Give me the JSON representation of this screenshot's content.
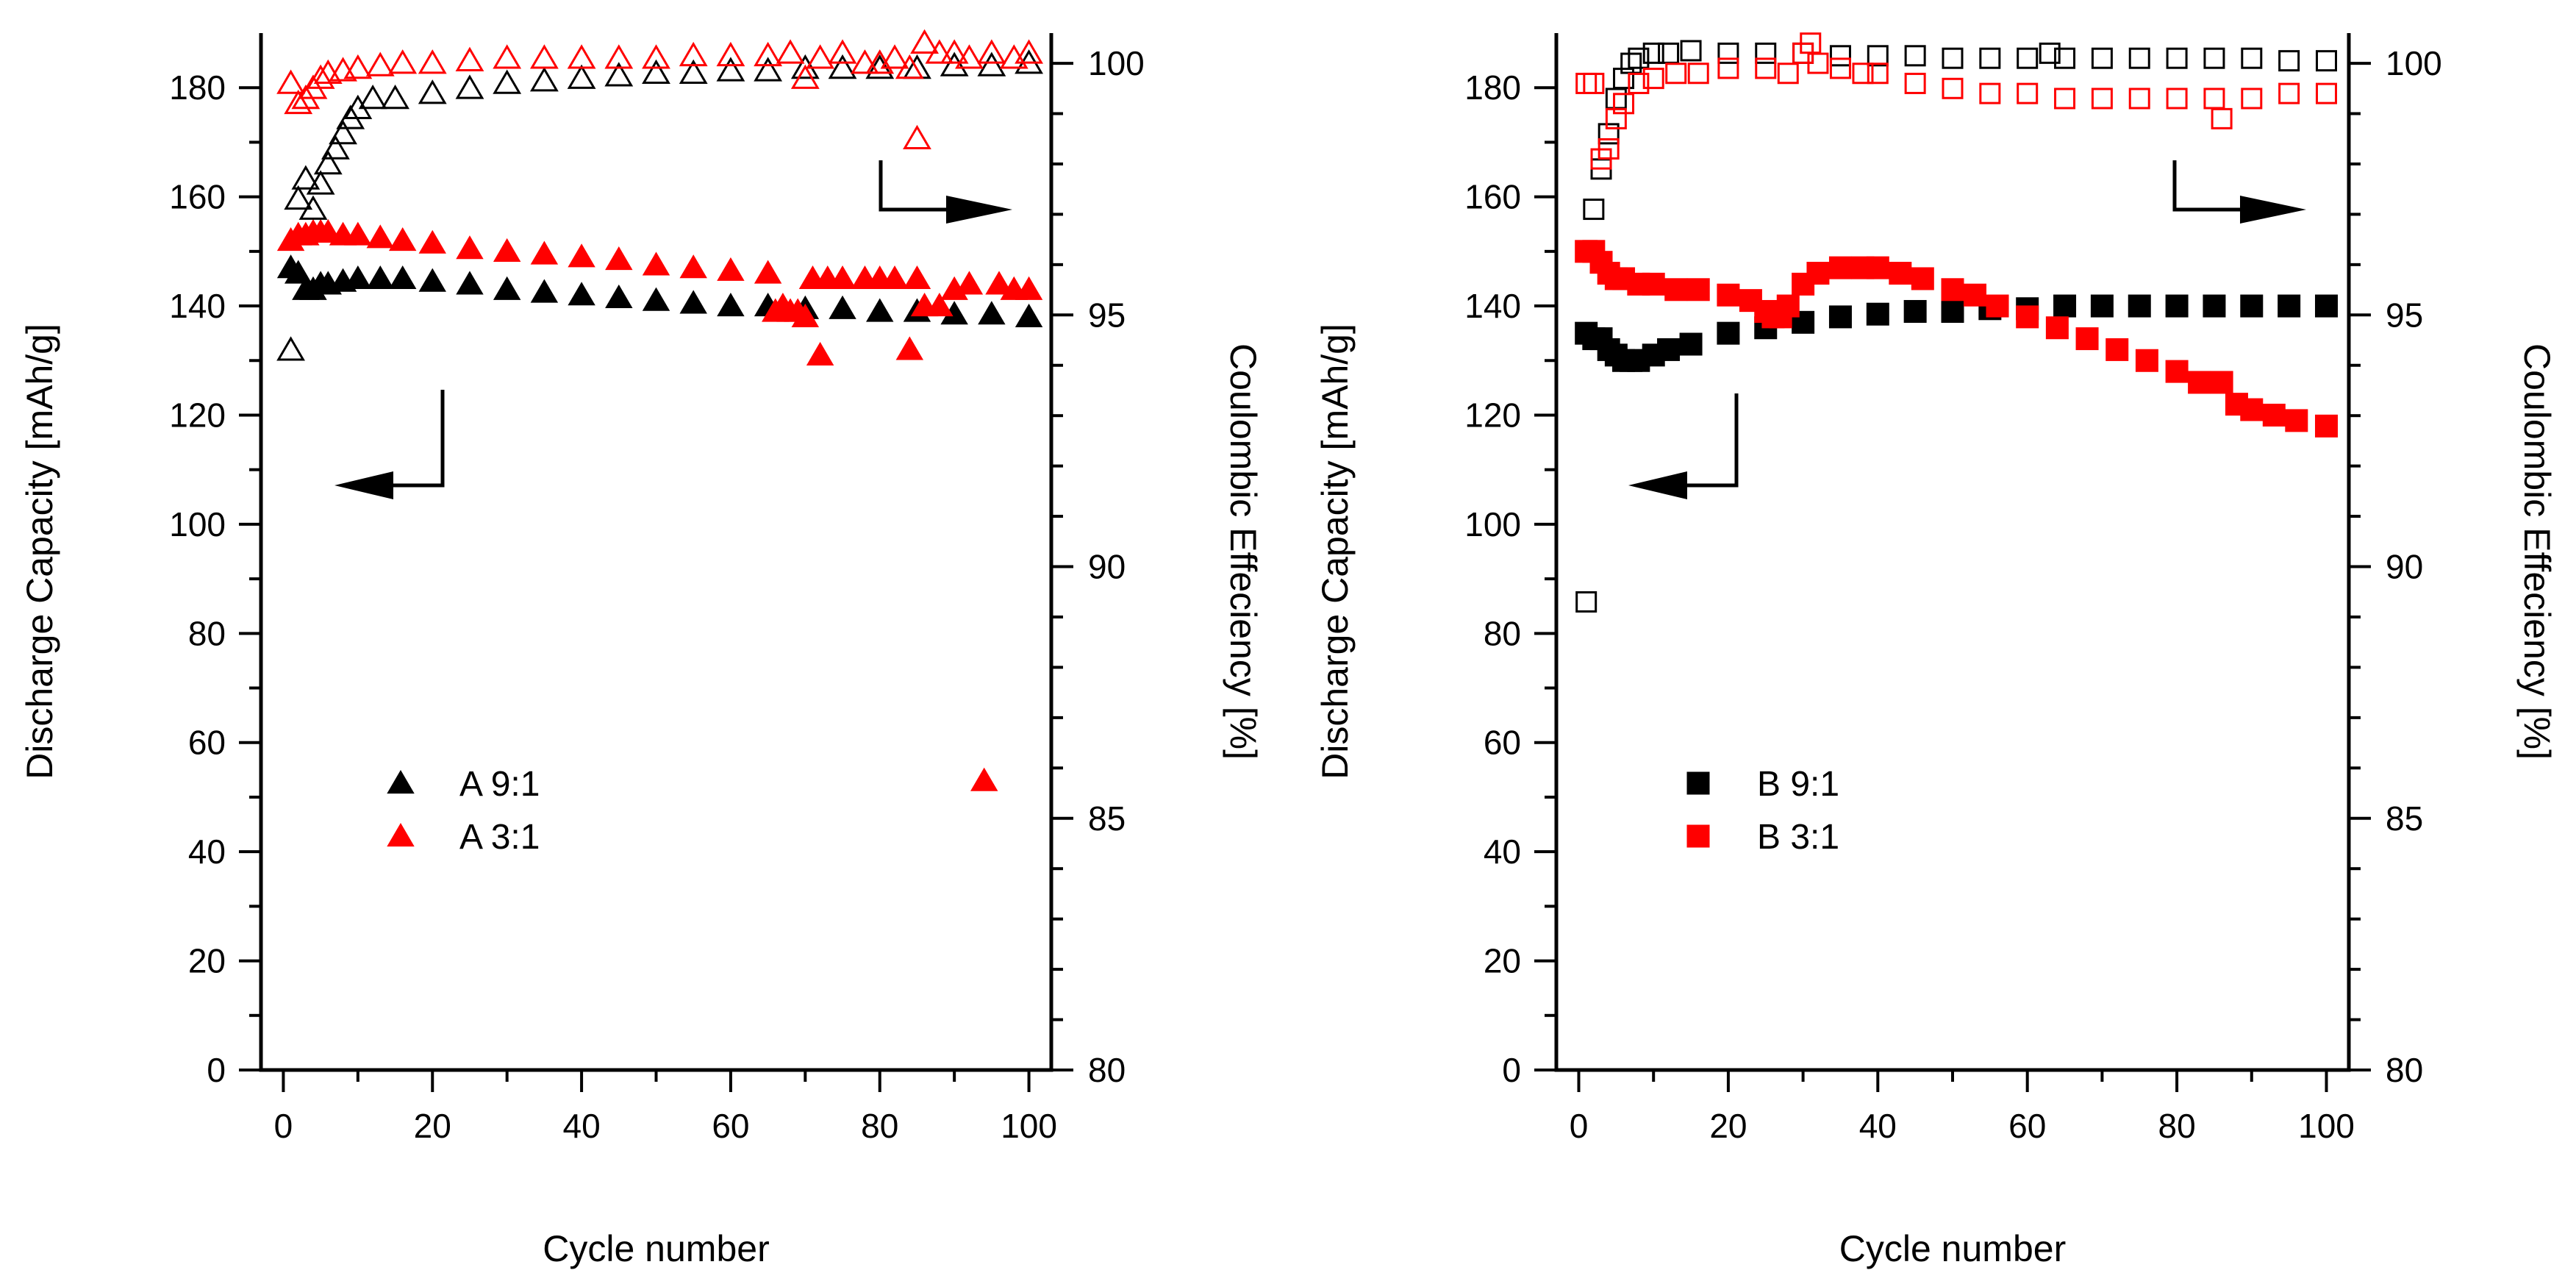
{
  "chart_data": [
    {
      "type": "scatter",
      "panel": "left",
      "xlabel": "Cycle number",
      "ylabel_left": "Discharge Capacity [mAh/g]",
      "ylabel_right": "Coulombic Effeciency [%]",
      "xlim": [
        -3,
        103
      ],
      "ylim_left": [
        0,
        190
      ],
      "ylim_right": [
        80,
        100.6
      ],
      "x_ticks": [
        0,
        20,
        40,
        60,
        80,
        100
      ],
      "y_ticks_left": [
        0,
        20,
        40,
        60,
        80,
        100,
        120,
        140,
        160,
        180
      ],
      "y_ticks_right": [
        80,
        85,
        90,
        95,
        100
      ],
      "legend": [
        {
          "label": "A 9:1",
          "color": "#000000",
          "marker": "triangle-filled"
        },
        {
          "label": "A 3:1",
          "color": "#ff0000",
          "marker": "triangle-filled"
        }
      ],
      "annotations": [
        {
          "type": "arrow",
          "points_to": "left axis",
          "near": [
            22,
            120
          ]
        },
        {
          "type": "arrow",
          "points_to": "right axis",
          "near": [
            80,
            168
          ]
        }
      ],
      "series": [
        {
          "name": "A 9:1 discharge capacity",
          "axis": "left",
          "color": "#000000",
          "marker": "triangle-filled",
          "x": [
            1,
            2,
            3,
            4,
            5,
            6,
            8,
            10,
            13,
            16,
            20,
            25,
            30,
            35,
            40,
            45,
            50,
            55,
            60,
            65,
            70,
            75,
            80,
            85,
            90,
            95,
            100
          ],
          "y": [
            147,
            146,
            143,
            143,
            144,
            144,
            144.5,
            145,
            145,
            145,
            144.5,
            144,
            143,
            142.5,
            142,
            141.5,
            141,
            140.5,
            140,
            140,
            139.5,
            139.5,
            139,
            139,
            138.5,
            138.5,
            138
          ]
        },
        {
          "name": "A 3:1 discharge capacity",
          "axis": "left",
          "color": "#ff0000",
          "marker": "triangle-filled",
          "x": [
            1,
            2,
            3,
            4,
            5,
            6,
            8,
            10,
            13,
            16,
            20,
            25,
            30,
            35,
            40,
            45,
            50,
            55,
            60,
            65,
            66,
            67,
            68,
            69,
            70,
            71,
            72,
            73,
            75,
            78,
            80,
            82,
            84,
            85,
            86,
            88,
            90,
            92,
            94,
            96,
            98,
            100
          ],
          "y": [
            152,
            153,
            153,
            153.5,
            153.5,
            153.5,
            153,
            153,
            152.5,
            152,
            151.5,
            150.5,
            150,
            149.5,
            149,
            148.5,
            147.5,
            147,
            146.5,
            146,
            139,
            140,
            139,
            139,
            138,
            145,
            131,
            145,
            145,
            145,
            145,
            145,
            132,
            145,
            140,
            140,
            143,
            144,
            53,
            144,
            143,
            143
          ]
        },
        {
          "name": "A 9:1 coulombic efficiency",
          "axis": "right",
          "color": "#000000",
          "marker": "triangle-open",
          "x": [
            1,
            2,
            3,
            4,
            5,
            6,
            7,
            8,
            9,
            10,
            12,
            15,
            20,
            25,
            30,
            35,
            40,
            45,
            50,
            55,
            60,
            65,
            70,
            75,
            80,
            85,
            90,
            95,
            100
          ],
          "y": [
            94.3,
            97.3,
            97.7,
            97.1,
            97.6,
            98.0,
            98.3,
            98.6,
            98.9,
            99.1,
            99.3,
            99.3,
            99.4,
            99.5,
            99.6,
            99.65,
            99.7,
            99.75,
            99.8,
            99.8,
            99.85,
            99.85,
            99.9,
            99.9,
            99.9,
            99.9,
            99.95,
            99.95,
            100.0
          ]
        },
        {
          "name": "A 3:1 coulombic efficiency",
          "axis": "right",
          "color": "#ff0000",
          "marker": "triangle-open",
          "x": [
            1,
            2,
            3,
            4,
            5,
            6,
            8,
            10,
            13,
            16,
            20,
            25,
            30,
            35,
            40,
            45,
            50,
            55,
            60,
            65,
            68,
            70,
            72,
            75,
            78,
            80,
            82,
            84,
            85,
            86,
            88,
            90,
            92,
            95,
            98,
            100
          ],
          "y": [
            99.6,
            99.2,
            99.3,
            99.5,
            99.7,
            99.8,
            99.85,
            99.9,
            99.95,
            100.0,
            100.0,
            100.05,
            100.1,
            100.1,
            100.1,
            100.1,
            100.1,
            100.15,
            100.15,
            100.15,
            100.2,
            99.7,
            100.1,
            100.2,
            100.0,
            100.0,
            100.1,
            99.9,
            98.5,
            100.4,
            100.2,
            100.2,
            100.1,
            100.2,
            100.1,
            100.2
          ]
        }
      ]
    },
    {
      "type": "scatter",
      "panel": "right",
      "xlabel": "Cycle number",
      "ylabel_left": "Discharge Capacity [mAh/g]",
      "ylabel_right": "Coulombic Effeciency [%]",
      "xlim": [
        -3,
        103
      ],
      "ylim_left": [
        0,
        190
      ],
      "ylim_right": [
        80,
        100.6
      ],
      "x_ticks": [
        0,
        20,
        40,
        60,
        80,
        100
      ],
      "y_ticks_left": [
        0,
        20,
        40,
        60,
        80,
        100,
        120,
        140,
        160,
        180
      ],
      "y_ticks_right": [
        80,
        85,
        90,
        95,
        100
      ],
      "legend": [
        {
          "label": "B 9:1",
          "color": "#000000",
          "marker": "square-filled"
        },
        {
          "label": "B 3:1",
          "color": "#ff0000",
          "marker": "square-filled"
        }
      ],
      "annotations": [
        {
          "type": "arrow",
          "points_to": "left axis",
          "near": [
            22,
            120
          ]
        },
        {
          "type": "arrow",
          "points_to": "right axis",
          "near": [
            80,
            168
          ]
        }
      ],
      "series": [
        {
          "name": "B 9:1 discharge capacity",
          "axis": "left",
          "color": "#000000",
          "marker": "square-filled",
          "x": [
            1,
            2,
            3,
            4,
            5,
            6,
            7,
            8,
            10,
            12,
            15,
            20,
            25,
            30,
            35,
            40,
            45,
            50,
            55,
            60,
            65,
            70,
            75,
            80,
            85,
            90,
            95,
            100
          ],
          "y": [
            135,
            134,
            134,
            132,
            131,
            130,
            130,
            130,
            131,
            132,
            133,
            135,
            136,
            137,
            138,
            138.5,
            139,
            139,
            139.5,
            139.5,
            140,
            140,
            140,
            140,
            140,
            140,
            140,
            140
          ]
        },
        {
          "name": "B 3:1 discharge capacity",
          "axis": "left",
          "color": "#ff0000",
          "marker": "square-filled",
          "x": [
            1,
            2,
            3,
            4,
            5,
            6,
            8,
            10,
            13,
            16,
            20,
            23,
            25,
            26,
            27,
            28,
            30,
            32,
            35,
            38,
            40,
            43,
            46,
            50,
            53,
            56,
            60,
            64,
            68,
            72,
            76,
            80,
            83,
            86,
            88,
            90,
            93,
            96,
            100
          ],
          "y": [
            150,
            150,
            148,
            146,
            145,
            145,
            144,
            144,
            143,
            143,
            142,
            141,
            139,
            138,
            138,
            140,
            144,
            146,
            147,
            147,
            147,
            146,
            145,
            143,
            142,
            140,
            138,
            136,
            134,
            132,
            130,
            128,
            126,
            126,
            122,
            121,
            120,
            119,
            118
          ]
        },
        {
          "name": "B 9:1 coulombic efficiency",
          "axis": "right",
          "color": "#000000",
          "marker": "square-open",
          "x": [
            1,
            2,
            3,
            4,
            5,
            6,
            7,
            8,
            10,
            12,
            15,
            20,
            25,
            30,
            35,
            40,
            45,
            50,
            55,
            60,
            63,
            65,
            70,
            75,
            80,
            85,
            90,
            95,
            100
          ],
          "y": [
            89.3,
            97.1,
            97.9,
            98.6,
            99.3,
            99.7,
            100.0,
            100.1,
            100.2,
            100.2,
            100.25,
            100.2,
            100.2,
            100.2,
            100.15,
            100.15,
            100.15,
            100.1,
            100.1,
            100.1,
            100.2,
            100.1,
            100.1,
            100.1,
            100.1,
            100.1,
            100.1,
            100.05,
            100.05
          ]
        },
        {
          "name": "B 3:1 coulombic efficiency",
          "axis": "right",
          "color": "#ff0000",
          "marker": "square-open",
          "x": [
            1,
            2,
            3,
            4,
            5,
            6,
            8,
            10,
            13,
            16,
            20,
            25,
            28,
            30,
            31,
            32,
            35,
            38,
            40,
            45,
            50,
            55,
            60,
            65,
            70,
            75,
            80,
            85,
            86,
            90,
            95,
            100
          ],
          "y": [
            99.6,
            99.6,
            98.1,
            98.3,
            98.9,
            99.2,
            99.6,
            99.7,
            99.8,
            99.8,
            99.9,
            99.9,
            99.8,
            100.2,
            100.4,
            100.0,
            99.9,
            99.8,
            99.8,
            99.6,
            99.5,
            99.4,
            99.4,
            99.3,
            99.3,
            99.3,
            99.3,
            99.3,
            98.9,
            99.3,
            99.4,
            99.4
          ]
        }
      ]
    }
  ]
}
